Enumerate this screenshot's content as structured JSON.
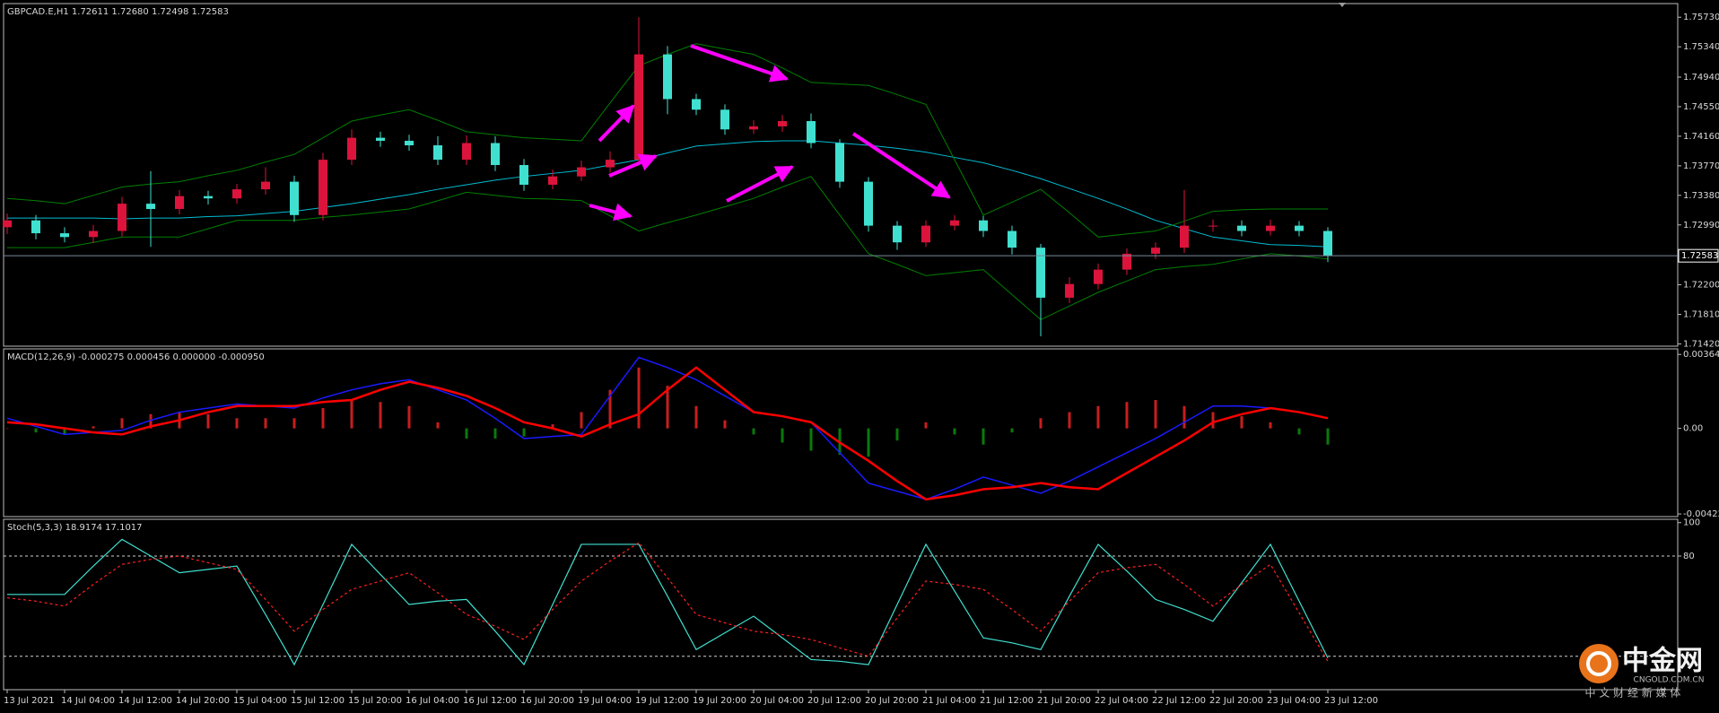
{
  "chart_data": [
    {
      "type": "candlestick",
      "title": "GBPCAD.E,H1  1.72611 1.72680 1.72498 1.72583",
      "categories": [
        "13 Jul 2021",
        null,
        "14 Jul 04:00",
        null,
        "14 Jul 12:00",
        null,
        "14 Jul 20:00",
        null,
        "15 Jul 04:00",
        null,
        "15 Jul 12:00",
        null,
        "15 Jul 20:00",
        null,
        "16 Jul 04:00",
        null,
        "16 Jul 12:00",
        null,
        "16 Jul 20:00",
        null,
        "19 Jul 04:00",
        null,
        "19 Jul 12:00",
        null,
        "19 Jul 20:00",
        null,
        "20 Jul 04:00",
        null,
        "20 Jul 12:00",
        null,
        "20 Jul 20:00",
        null,
        "21 Jul 04:00",
        null,
        "21 Jul 12:00",
        null,
        "21 Jul 20:00",
        null,
        "22 Jul 04:00",
        null,
        "22 Jul 12:00",
        null,
        "22 Jul 20:00",
        null,
        "23 Jul 04:00",
        null,
        "23 Jul 12:00"
      ],
      "open": [
        1.7296,
        1.7305,
        1.7288,
        1.7283,
        1.7291,
        1.7327,
        1.732,
        1.7337,
        1.7334,
        1.7346,
        1.7356,
        1.7312,
        1.7385,
        1.7414,
        1.741,
        1.7404,
        1.7385,
        1.7407,
        1.7378,
        1.7352,
        1.7363,
        1.7375,
        1.7385,
        1.7524,
        1.7465,
        1.7451,
        1.7425,
        1.7429,
        1.7436,
        1.7407,
        1.7356,
        1.7298,
        1.7276,
        1.7298,
        1.7305,
        1.7291,
        1.7269,
        1.7203,
        1.7221,
        1.724,
        1.7261,
        1.7269,
        1.7298,
        1.7298,
        1.7291,
        1.7298,
        1.7291
      ],
      "high": [
        1.7314,
        1.7312,
        1.7296,
        1.7299,
        1.7336,
        1.737,
        1.7345,
        1.7344,
        1.7353,
        1.7375,
        1.7364,
        1.7394,
        1.7425,
        1.7422,
        1.7418,
        1.7416,
        1.7417,
        1.7416,
        1.7386,
        1.7372,
        1.7384,
        1.7396,
        1.7573,
        1.7535,
        1.7472,
        1.7458,
        1.7437,
        1.7444,
        1.7446,
        1.7412,
        1.7362,
        1.7304,
        1.7305,
        1.7312,
        1.7311,
        1.7298,
        1.7274,
        1.723,
        1.7248,
        1.7268,
        1.7276,
        1.7345,
        1.7306,
        1.7305,
        1.7306,
        1.7304,
        1.7296
      ],
      "low": [
        1.7287,
        1.728,
        1.7276,
        1.7275,
        1.7284,
        1.727,
        1.7313,
        1.7326,
        1.7327,
        1.7339,
        1.7303,
        1.7305,
        1.7378,
        1.7402,
        1.7397,
        1.7378,
        1.7378,
        1.737,
        1.7344,
        1.7346,
        1.7357,
        1.7368,
        1.7378,
        1.7445,
        1.7444,
        1.7418,
        1.7419,
        1.7422,
        1.74,
        1.7348,
        1.729,
        1.7266,
        1.727,
        1.7292,
        1.7283,
        1.726,
        1.7152,
        1.7196,
        1.7214,
        1.7233,
        1.7254,
        1.7262,
        1.729,
        1.7284,
        1.7285,
        1.7284,
        1.725
      ],
      "close": [
        1.7305,
        1.7288,
        1.7283,
        1.7291,
        1.7327,
        1.732,
        1.7337,
        1.7334,
        1.7346,
        1.7356,
        1.7312,
        1.7385,
        1.7414,
        1.741,
        1.7404,
        1.7385,
        1.7407,
        1.7378,
        1.7352,
        1.7363,
        1.7375,
        1.7385,
        1.7524,
        1.7465,
        1.7451,
        1.7425,
        1.7429,
        1.7436,
        1.7407,
        1.7356,
        1.7298,
        1.7276,
        1.7298,
        1.7305,
        1.7291,
        1.7269,
        1.7203,
        1.7221,
        1.724,
        1.7261,
        1.7269,
        1.7298,
        1.7298,
        1.7291,
        1.7298,
        1.7291,
        1.7258
      ],
      "up_color": "#dc143c",
      "down_color": "#40e0d0",
      "overlays": [
        {
          "color": "#00bcd4",
          "values": [
            1.7308,
            1.7308,
            1.7308,
            1.7308,
            1.7307,
            1.7308,
            1.7308,
            1.731,
            1.7311,
            1.7314,
            1.7317,
            1.7322,
            1.7327,
            1.7333,
            1.7339,
            1.7346,
            1.7352,
            1.7358,
            1.7363,
            1.7367,
            1.7371,
            1.7378,
            1.7385,
            1.7394,
            1.7403,
            1.7406,
            1.7409,
            1.741,
            1.741,
            1.7407,
            1.7404,
            1.74,
            1.7395,
            1.7388,
            1.7381,
            1.7371,
            1.736,
            1.7347,
            1.7334,
            1.732,
            1.7305,
            1.7294,
            1.7283,
            1.7278,
            1.7273,
            1.7272,
            1.727
          ]
        },
        {
          "color": "#008000",
          "values": [
            1.7334,
            1.7331,
            1.7327,
            1.7338,
            1.7349,
            1.7353,
            1.7356,
            1.7364,
            1.7371,
            1.7382,
            1.7392,
            1.7414,
            1.7436,
            1.7444,
            1.7451,
            1.7437,
            1.7422,
            1.7418,
            1.7414,
            1.7412,
            1.741,
            1.746,
            1.7509,
            1.7524,
            1.7538,
            1.7531,
            1.7524,
            1.7506,
            1.7487,
            1.7485,
            1.7483,
            1.7471,
            1.7458,
            1.7385,
            1.7312,
            1.7329,
            1.7346,
            1.7315,
            1.7283,
            1.7287,
            1.7291,
            1.7304,
            1.7317,
            1.7319,
            1.732,
            1.732,
            1.732
          ]
        },
        {
          "color": "#008000",
          "values": [
            1.7269,
            1.7269,
            1.7269,
            1.7276,
            1.7283,
            1.7283,
            1.7283,
            1.7294,
            1.7305,
            1.7305,
            1.7305,
            1.7309,
            1.7312,
            1.7316,
            1.732,
            1.7331,
            1.7342,
            1.7338,
            1.7334,
            1.7333,
            1.7331,
            1.7311,
            1.7291,
            1.7302,
            1.7312,
            1.7323,
            1.7334,
            1.7349,
            1.7363,
            1.7312,
            1.7261,
            1.7247,
            1.7232,
            1.7236,
            1.724,
            1.7207,
            1.7174,
            1.7192,
            1.721,
            1.7225,
            1.724,
            1.7244,
            1.7247,
            1.7254,
            1.7261,
            1.7258,
            1.7254
          ]
        }
      ],
      "price_line": 1.72583,
      "price_line_color": "#778899",
      "ylim": [
        1.7139,
        1.7591
      ],
      "yticks": [
        {
          "value": 1.7573,
          "label": "1.75730"
        },
        {
          "value": 1.7534,
          "label": "1.75340"
        },
        {
          "value": 1.7494,
          "label": "1.74940"
        },
        {
          "value": 1.7455,
          "label": "1.74550"
        },
        {
          "value": 1.7416,
          "label": "1.74160"
        },
        {
          "value": 1.7377,
          "label": "1.73770"
        },
        {
          "value": 1.7338,
          "label": "1.73380"
        },
        {
          "value": 1.7299,
          "label": "1.72990"
        },
        {
          "value": 1.722,
          "label": "1.72200"
        },
        {
          "value": 1.7181,
          "label": "1.71810"
        },
        {
          "value": 1.7142,
          "label": "1.71420"
        }
      ]
    },
    {
      "type": "macd",
      "title": "MACD(12,26,9) -0.000275 0.000456 0.000000 -0.000950",
      "histogram": {
        "pos_color": "#c81e1e",
        "neg_color": "#0a7a0a",
        "values": [
          0,
          -0.0002,
          -0.0003,
          0.0001,
          0.0005,
          0.0007,
          0.0008,
          0.0007,
          0.0005,
          0.0005,
          0.0005,
          0.001,
          0.0014,
          0.0013,
          0.0011,
          0.0003,
          -0.0005,
          -0.0005,
          -0.0004,
          0.0002,
          0.0008,
          0.0019,
          0.003,
          0.0021,
          0.0011,
          0.0004,
          -0.0003,
          -0.0007,
          -0.0011,
          -0.0013,
          -0.0014,
          -0.0006,
          0.0003,
          -0.0003,
          -0.0008,
          -0.0002,
          0.0005,
          0.0008,
          0.0011,
          0.0013,
          0.0014,
          0.0011,
          0.0008,
          0.0006,
          0.0003,
          -0.0003,
          -0.0008
        ]
      },
      "series": [
        {
          "color": "#1a1aff",
          "width": 1.5,
          "values": [
            0.0005,
            0.0001,
            -0.0003,
            -0.0002,
            -0.0001,
            0.0004,
            0.0008,
            0.001,
            0.0012,
            0.0011,
            0.001,
            0.0015,
            0.0019,
            0.0022,
            0.0024,
            0.0019,
            0.0014,
            0.0005,
            -0.0005,
            -0.0004,
            -0.0003,
            0.0016,
            0.0035,
            0.003,
            0.0024,
            0.0016,
            0.0008,
            0.0006,
            0.0003,
            -0.0012,
            -0.0027,
            -0.0031,
            -0.0035,
            -0.003,
            -0.0024,
            -0.0028,
            -0.0032,
            -0.0026,
            -0.0019,
            -0.0012,
            -0.0005,
            0.0003,
            0.0011,
            0.0011,
            0.001,
            0.0008,
            0.0005
          ]
        },
        {
          "color": "#ff0000",
          "width": 2.5,
          "values": [
            0.0003,
            0.0002,
            0,
            -0.0002,
            -0.0003,
            0.0001,
            0.0004,
            0.0008,
            0.0011,
            0.0011,
            0.0011,
            0.0013,
            0.0014,
            0.0019,
            0.0023,
            0.002,
            0.0016,
            0.001,
            0.0003,
            0,
            -0.0004,
            0.0002,
            0.0007,
            0.0019,
            0.003,
            0.0019,
            0.0008,
            0.0006,
            0.0003,
            -0.0007,
            -0.0016,
            -0.0026,
            -0.0035,
            -0.0033,
            -0.003,
            -0.0029,
            -0.0027,
            -0.0029,
            -0.003,
            -0.0022,
            -0.0014,
            -0.0006,
            0.0003,
            0.0007,
            0.001,
            0.0008,
            0.0005
          ]
        }
      ],
      "ylim": [
        -0.00435,
        0.00392
      ],
      "yticks": [
        0.003645,
        {
          "value": 0,
          "label": "0.00"
        },
        -0.00422
      ]
    },
    {
      "type": "line",
      "title": "Stoch(5,3,3) 18.9174 17.1017",
      "series": [
        {
          "color": "#40e0d0",
          "dashed": false,
          "values": [
            57,
            57,
            57,
            74,
            90,
            80,
            70,
            72,
            74,
            45,
            15,
            51,
            87,
            69,
            51,
            53,
            54,
            35,
            15,
            51,
            87,
            87,
            87,
            56,
            24,
            34,
            44,
            31,
            18,
            17,
            15,
            51,
            87,
            59,
            31,
            28,
            24,
            56,
            87,
            71,
            54,
            48,
            41,
            64,
            87,
            53,
            19
          ]
        },
        {
          "color": "#ff2020",
          "dashed": true,
          "values": [
            55,
            53,
            50,
            63,
            75,
            78,
            80,
            76,
            72,
            54,
            35,
            48,
            60,
            65,
            70,
            58,
            45,
            38,
            30,
            48,
            65,
            77,
            88,
            67,
            45,
            40,
            35,
            33,
            30,
            25,
            20,
            43,
            65,
            63,
            60,
            48,
            35,
            53,
            70,
            73,
            75,
            63,
            50,
            63,
            75,
            46,
            17
          ]
        }
      ],
      "levels": [
        80,
        20
      ],
      "ylim": [
        0,
        102
      ],
      "yticks": [
        100,
        80
      ]
    }
  ],
  "watermark": {
    "name": "中金网",
    "domain": "CNGOLD.COM.CN",
    "tagline": "中 文 财 经 新 媒 体"
  }
}
